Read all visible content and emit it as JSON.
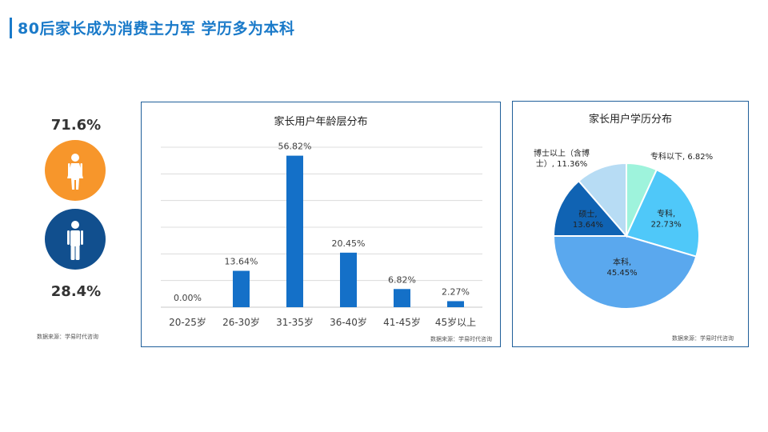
{
  "page": {
    "title": "80后家长成为消费主力军  学历多为本科"
  },
  "gender": {
    "female": {
      "percent": "71.6%",
      "icon": "female-icon",
      "color": "#f7962b"
    },
    "male": {
      "percent": "28.4%",
      "icon": "male-icon",
      "color": "#114f8e"
    },
    "source": "数据来源：学易时代咨询"
  },
  "chart_data": [
    {
      "type": "bar",
      "title": "家长用户年龄层分布",
      "categories": [
        "20-25岁",
        "26-30岁",
        "31-35岁",
        "36-40岁",
        "41-45岁",
        "45岁以上"
      ],
      "values": [
        0.0,
        13.64,
        56.82,
        20.45,
        6.82,
        2.27
      ],
      "data_labels": [
        "0.00%",
        "13.64%",
        "56.82%",
        "20.45%",
        "6.82%",
        "2.27%"
      ],
      "ylim": [
        0,
        60
      ],
      "grid": true,
      "color": "#1470c8",
      "source": "数据来源：学易时代咨询"
    },
    {
      "type": "pie",
      "title": "家长用户学历分布",
      "slices": [
        {
          "name": "专科以下",
          "value": 6.82,
          "label": "专科以下, 6.82%",
          "color": "#9ef3dc"
        },
        {
          "name": "专科",
          "value": 22.73,
          "label_lines": [
            "专科,",
            "22.73%"
          ],
          "color": "#4fc8f9"
        },
        {
          "name": "本科",
          "value": 45.45,
          "label_lines": [
            "本科,",
            "45.45%"
          ],
          "color": "#5aa8ee"
        },
        {
          "name": "硕士",
          "value": 13.64,
          "label_lines": [
            "硕士,",
            "13.64%"
          ],
          "color": "#1063b3"
        },
        {
          "name": "博士以上（含博士）",
          "value": 11.36,
          "label_lines": [
            "博士以上（含博",
            "士）, 11.36%"
          ],
          "color": "#b7dcf4"
        }
      ],
      "source": "数据来源：学易时代咨询"
    }
  ]
}
